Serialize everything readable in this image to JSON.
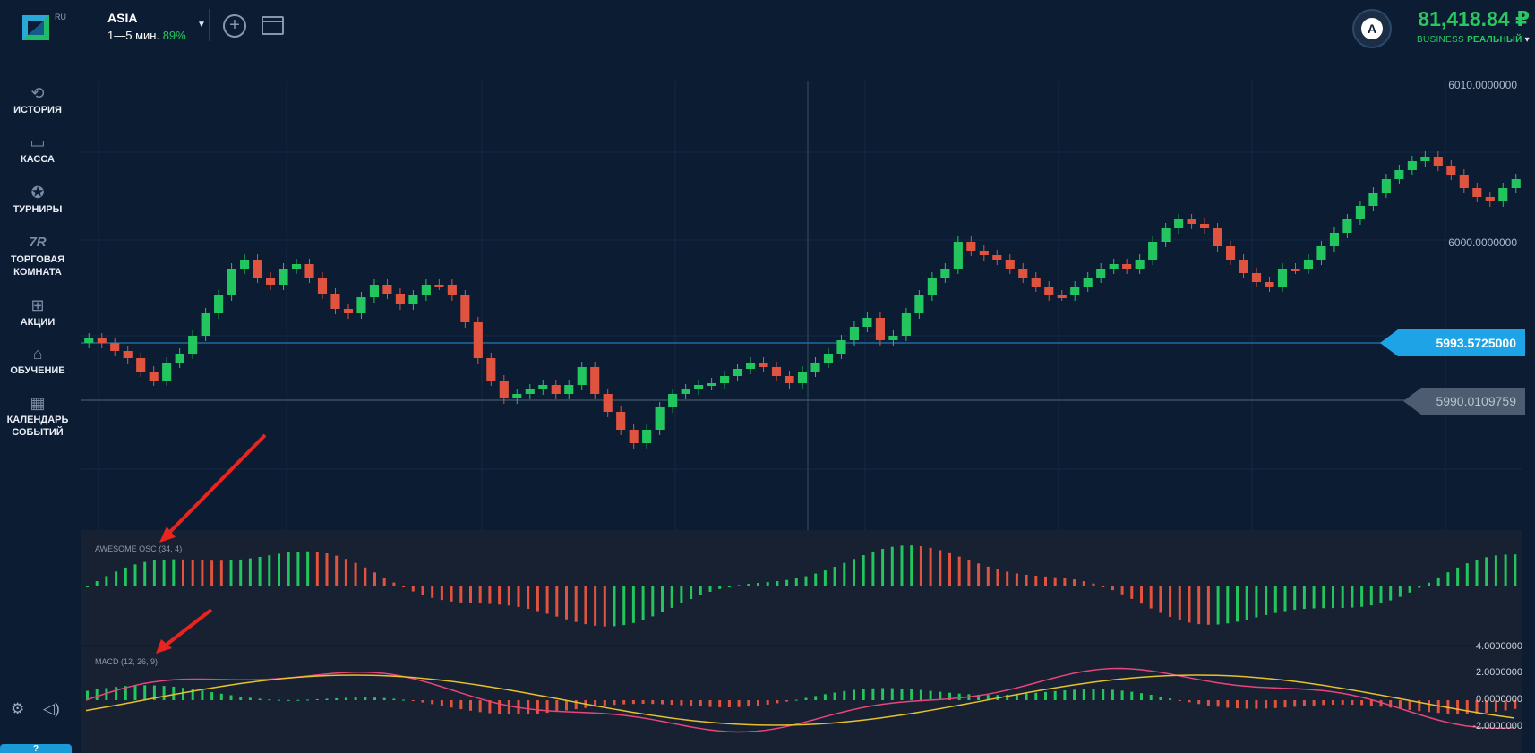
{
  "header": {
    "logo_suffix": "RU",
    "asset": {
      "name": "ASIA",
      "timeframe": "1—5 мин.",
      "payout": "89%"
    },
    "balance": {
      "amount": "81,418.84 ₽",
      "account_type": "BUSINESS",
      "account_mode": "РЕАЛЬНЫЙ"
    },
    "avatar_letter": "A"
  },
  "sidebar": {
    "items": [
      {
        "label": "ИСТОРИЯ",
        "icon": "history-icon"
      },
      {
        "label": "КАССА",
        "icon": "wallet-icon"
      },
      {
        "label": "ТУРНИРЫ",
        "icon": "star-icon"
      },
      {
        "label": "ТОРГОВАЯ",
        "label2": "КОМНАТА",
        "icon": "trading-room-icon"
      },
      {
        "label": "АКЦИИ",
        "icon": "gift-icon"
      },
      {
        "label": "ОБУЧЕНИЕ",
        "icon": "graduation-cap-icon"
      },
      {
        "label": "КАЛЕНДАРЬ",
        "label2": "СОБЫТИЙ",
        "icon": "calendar-icon"
      }
    ],
    "help_label": "?"
  },
  "chart": {
    "price_axis": {
      "top": "6010.0000000",
      "mid": "6000.0000000"
    },
    "current_price": "5993.5725000",
    "strike_price": "5990.0109759",
    "awesome_osc_label": "AWESOME OSC (34, 4)",
    "macd_label": "MACD (12, 26, 9)",
    "macd_axis": [
      "4.0000000",
      "2.0000000",
      "0.0000000",
      "-2.0000000"
    ],
    "colors": {
      "up": "#22c55e",
      "down": "#e0533f",
      "macd": "#e8457c",
      "signal": "#e6c12b",
      "current": "#1ea3e6"
    }
  }
}
